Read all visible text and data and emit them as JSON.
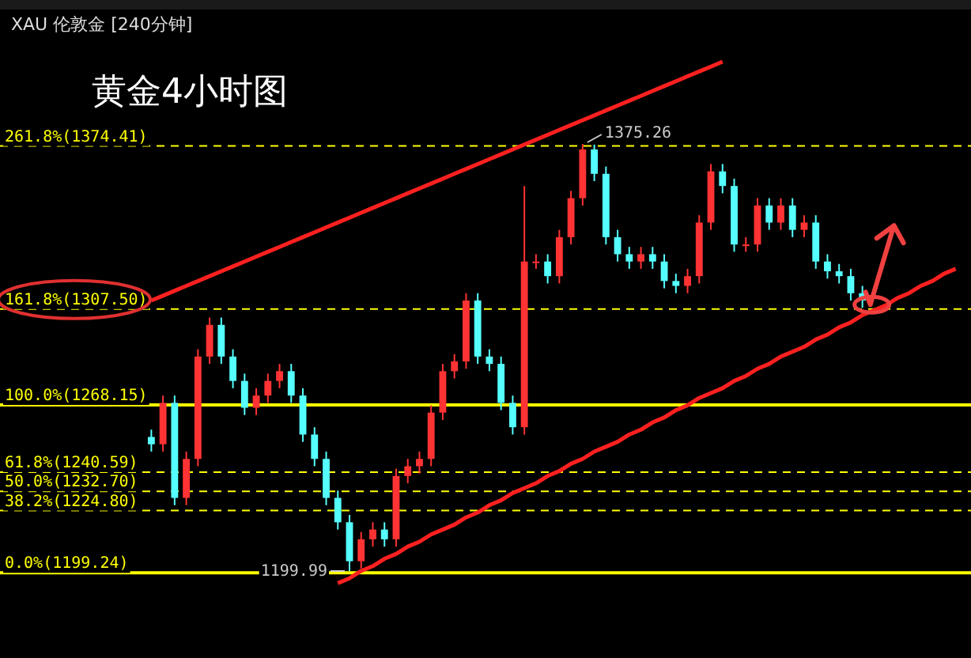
{
  "chart_data": {
    "type": "candlestick",
    "title": "黄金4小时图",
    "subtitle": "XAU 伦敦金 [240分钟]",
    "categories": [
      null,
      null,
      null,
      null,
      null,
      null,
      null,
      null,
      null,
      null,
      null,
      null,
      null,
      null,
      null,
      null,
      null,
      null,
      null,
      null,
      null,
      null,
      null,
      null,
      null,
      null,
      null,
      null,
      null,
      null,
      null,
      null,
      null,
      null,
      null,
      null,
      null,
      null,
      null,
      null,
      null,
      null,
      null,
      null,
      null,
      null,
      null,
      null,
      null,
      null,
      null,
      null,
      null,
      null,
      null,
      null,
      null,
      null,
      null,
      null,
      null,
      null,
      null,
      null,
      null,
      null,
      null,
      null,
      null,
      null
    ],
    "series": [
      {
        "type": "candlestick",
        "ohlc": [
          [
            1255,
            1258,
            1249,
            1252
          ],
          [
            1252,
            1272,
            1249,
            1269
          ],
          [
            1269,
            1272,
            1227,
            1230
          ],
          [
            1230,
            1249,
            1227,
            1246
          ],
          [
            1246,
            1291,
            1243,
            1288
          ],
          [
            1288,
            1304,
            1285,
            1301
          ],
          [
            1301,
            1304,
            1285,
            1288
          ],
          [
            1288,
            1291,
            1275,
            1278
          ],
          [
            1278,
            1281,
            1264,
            1267
          ],
          [
            1267,
            1275,
            1264,
            1272
          ],
          [
            1272,
            1281,
            1269,
            1278
          ],
          [
            1278,
            1285,
            1275,
            1282
          ],
          [
            1282,
            1285,
            1269,
            1272
          ],
          [
            1272,
            1275,
            1253,
            1256
          ],
          [
            1256,
            1259,
            1243,
            1246
          ],
          [
            1246,
            1249,
            1227,
            1230
          ],
          [
            1230,
            1233,
            1217,
            1220
          ],
          [
            1220,
            1223,
            1199.99,
            1204
          ],
          [
            1204,
            1216,
            1201,
            1213
          ],
          [
            1213,
            1220,
            1210,
            1217
          ],
          [
            1217,
            1220,
            1210,
            1213
          ],
          [
            1213,
            1242,
            1210,
            1239
          ],
          [
            1239,
            1246,
            1236,
            1243
          ],
          [
            1243,
            1249,
            1240,
            1246
          ],
          [
            1246,
            1268,
            1243,
            1265
          ],
          [
            1265,
            1285,
            1262,
            1282
          ],
          [
            1282,
            1289,
            1279,
            1286
          ],
          [
            1286,
            1314,
            1283,
            1311
          ],
          [
            1311,
            1314,
            1285,
            1288
          ],
          [
            1288,
            1291,
            1282,
            1285
          ],
          [
            1285,
            1288,
            1266,
            1269
          ],
          [
            1269,
            1272,
            1256,
            1259
          ],
          [
            1259,
            1358,
            1256,
            1327
          ],
          [
            1327,
            1330,
            1324,
            1327
          ],
          [
            1327,
            1330,
            1318,
            1321
          ],
          [
            1321,
            1340,
            1318,
            1337
          ],
          [
            1337,
            1356,
            1334,
            1353
          ],
          [
            1353,
            1375.26,
            1350,
            1373
          ],
          [
            1373,
            1375,
            1360,
            1363
          ],
          [
            1363,
            1366,
            1334,
            1337
          ],
          [
            1337,
            1340,
            1327,
            1330
          ],
          [
            1330,
            1333,
            1324,
            1327
          ],
          [
            1327,
            1333,
            1324,
            1330
          ],
          [
            1330,
            1333,
            1324,
            1327
          ],
          [
            1327,
            1330,
            1316,
            1319
          ],
          [
            1319,
            1322,
            1314,
            1317
          ],
          [
            1317,
            1324,
            1314,
            1321
          ],
          [
            1321,
            1346,
            1318,
            1343
          ],
          [
            1343,
            1367,
            1340,
            1364
          ],
          [
            1364,
            1367,
            1355,
            1358
          ],
          [
            1358,
            1361,
            1331,
            1334
          ],
          [
            1334,
            1337,
            1331,
            1334
          ],
          [
            1334,
            1353,
            1331,
            1350
          ],
          [
            1350,
            1353,
            1340,
            1343
          ],
          [
            1343,
            1353,
            1340,
            1350
          ],
          [
            1350,
            1353,
            1337,
            1340
          ],
          [
            1340,
            1346,
            1337,
            1343
          ],
          [
            1343,
            1346,
            1324,
            1327
          ],
          [
            1327,
            1330,
            1320,
            1323
          ],
          [
            1323,
            1326,
            1318,
            1321
          ],
          [
            1321,
            1324,
            1311,
            1314
          ],
          [
            1314,
            1317,
            1308,
            1311
          ],
          null,
          null,
          null,
          null,
          null,
          null,
          null,
          null
        ],
        "colors": [
          "#55ffff",
          "#ff3333",
          "#55ffff",
          "#ff3333",
          "#ff3333",
          "#ff3333",
          "#55ffff",
          "#55ffff",
          "#55ffff",
          "#ff3333",
          "#ff3333",
          "#ff3333",
          "#55ffff",
          "#55ffff",
          "#55ffff",
          "#55ffff",
          "#55ffff",
          "#55ffff",
          "#ff3333",
          "#ff3333",
          "#55ffff",
          "#ff3333",
          "#ff3333",
          "#ff3333",
          "#ff3333",
          "#ff3333",
          "#ff3333",
          "#ff3333",
          "#55ffff",
          "#55ffff",
          "#55ffff",
          "#55ffff",
          "#ff3333",
          "#ff3333",
          "#55ffff",
          "#ff3333",
          "#ff3333",
          "#ff3333",
          "#55ffff",
          "#55ffff",
          "#55ffff",
          "#55ffff",
          "#ff3333",
          "#55ffff",
          "#55ffff",
          "#55ffff",
          "#ff3333",
          "#ff3333",
          "#ff3333",
          "#55ffff",
          "#55ffff",
          "#ff3333",
          "#ff3333",
          "#55ffff",
          "#ff3333",
          "#55ffff",
          "#ff3333",
          "#55ffff",
          "#55ffff",
          "#55ffff",
          "#55ffff",
          "#55ffff",
          null,
          null,
          null,
          null,
          null,
          null,
          null,
          null
        ]
      },
      {
        "type": "line",
        "color": "#ff2020",
        "values": [
          1311,
          1313,
          1315,
          1317,
          1319,
          1321,
          1323,
          1325,
          1327,
          1329,
          1331,
          1333,
          1335,
          1337,
          1339,
          1341,
          1343,
          1345,
          1347,
          1349,
          1351,
          1353,
          1355,
          1357,
          1359,
          1361,
          1363,
          1365,
          1367,
          1369,
          1371,
          1373,
          1375,
          1377,
          1379,
          1381,
          1383,
          1385,
          1387,
          1389,
          1391,
          1393,
          1395,
          1397,
          1399,
          1401,
          1403,
          1405,
          1407,
          1409,
          null,
          null,
          null,
          null,
          null,
          null,
          null,
          null,
          null,
          null,
          null,
          null,
          null,
          null,
          null,
          null,
          null,
          null,
          null,
          null
        ]
      },
      {
        "type": "line",
        "color": "#ff2020",
        "values": [
          null,
          null,
          null,
          null,
          null,
          null,
          null,
          null,
          null,
          null,
          null,
          null,
          null,
          null,
          null,
          null,
          1195,
          1197,
          1200,
          1202,
          1205,
          1207,
          1210,
          1212,
          1215,
          1217,
          1219,
          1222,
          1224,
          1227,
          1229,
          1232,
          1234,
          1236,
          1239,
          1241,
          1244,
          1246,
          1249,
          1251,
          1253,
          1256,
          1258,
          1261,
          1263,
          1266,
          1268,
          1271,
          1273,
          1275,
          1278,
          1280,
          1283,
          1285,
          1288,
          1290,
          1292,
          1295,
          1297,
          1300,
          1302,
          1305,
          1307,
          1309,
          1312,
          1314,
          1317,
          1319,
          1322,
          1324
        ]
      }
    ],
    "ref_lines": [
      {
        "axis": "y",
        "value": 1374.41,
        "label": "261.8%(1374.41)",
        "color": "#ffff00",
        "line_style": "dashed"
      },
      {
        "axis": "y",
        "value": 1307.5,
        "label": "161.8%(1307.50)",
        "color": "#ffff00",
        "line_style": "dashed"
      },
      {
        "axis": "y",
        "value": 1268.15,
        "label": "100.0%(1268.15)",
        "color": "#ffff00",
        "line_style": "solid"
      },
      {
        "axis": "y",
        "value": 1240.59,
        "label": "61.8%(1240.59)",
        "color": "#ffff00",
        "line_style": "dashed"
      },
      {
        "axis": "y",
        "value": 1232.7,
        "label": "50.0%(1232.70)",
        "color": "#ffff00",
        "line_style": "dashed"
      },
      {
        "axis": "y",
        "value": 1224.8,
        "label": "38.2%(1224.80)",
        "color": "#ffff00",
        "line_style": "dashed"
      },
      {
        "axis": "y",
        "value": 1199.24,
        "label": "0.0%(1199.24)",
        "color": "#ffff00",
        "line_style": "solid"
      }
    ],
    "annotations": [
      {
        "text": "1375.26",
        "y": 1375.26
      },
      {
        "text": "1199.99",
        "y": 1199.99
      }
    ]
  }
}
